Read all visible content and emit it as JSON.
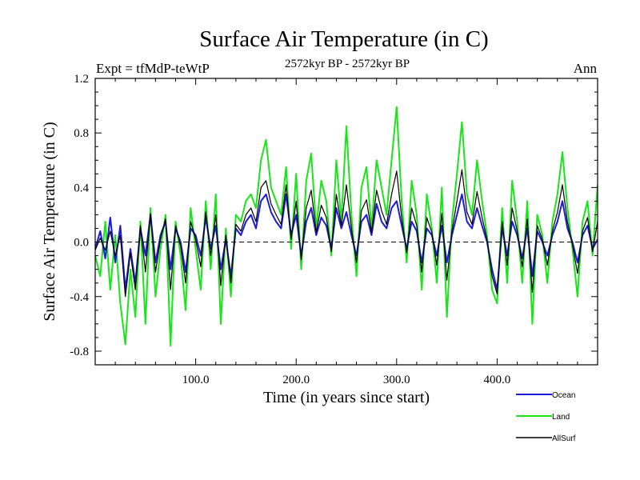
{
  "chart_data": {
    "type": "line",
    "title": "Surface Air Temperature (in C)",
    "subtitle": "2572kyr BP - 2572kyr BP",
    "left_label": "Expt = tfMdP-teWtP",
    "right_label": "Ann",
    "xlabel": "Time (in years since start)",
    "ylabel": "Surface Air Temperature (in C)",
    "xlim": [
      0,
      500
    ],
    "ylim": [
      -0.9,
      1.2
    ],
    "x_ticks": [
      100,
      200,
      300,
      400
    ],
    "x_tick_labels": [
      "100.0",
      "200.0",
      "300.0",
      "400.0"
    ],
    "y_ticks": [
      -0.8,
      -0.4,
      0.0,
      0.4,
      0.8,
      1.2
    ],
    "y_tick_labels": [
      "-0.8",
      "-0.4",
      "0.0",
      "0.4",
      "0.8",
      "1.2"
    ],
    "reference_line": 0.0,
    "legend_position": "bottom-right",
    "x": [
      0,
      5,
      10,
      15,
      20,
      25,
      30,
      35,
      40,
      45,
      50,
      55,
      60,
      65,
      70,
      75,
      80,
      85,
      90,
      95,
      100,
      105,
      110,
      115,
      120,
      125,
      130,
      135,
      140,
      145,
      150,
      155,
      160,
      165,
      170,
      175,
      180,
      185,
      190,
      195,
      200,
      205,
      210,
      215,
      220,
      225,
      230,
      235,
      240,
      245,
      250,
      255,
      260,
      265,
      270,
      275,
      280,
      285,
      290,
      295,
      300,
      305,
      310,
      315,
      320,
      325,
      330,
      335,
      340,
      345,
      350,
      355,
      360,
      365,
      370,
      375,
      380,
      385,
      390,
      395,
      400,
      405,
      410,
      415,
      420,
      425,
      430,
      435,
      440,
      445,
      450,
      455,
      460,
      465,
      470,
      475,
      480,
      485,
      490,
      495,
      500
    ],
    "series": [
      {
        "name": "Ocean",
        "color": "#1c1cd8",
        "values": [
          -0.05,
          0.08,
          -0.12,
          0.18,
          -0.15,
          0.12,
          -0.35,
          -0.05,
          -0.3,
          0.1,
          -0.1,
          0.2,
          -0.15,
          0.05,
          0.15,
          -0.2,
          0.1,
          0.0,
          -0.22,
          0.1,
          0.05,
          -0.1,
          0.18,
          -0.05,
          0.12,
          -0.2,
          0.02,
          -0.25,
          0.1,
          0.05,
          0.15,
          0.2,
          0.1,
          0.3,
          0.35,
          0.22,
          0.15,
          0.1,
          0.35,
          0.05,
          0.2,
          -0.1,
          0.15,
          0.25,
          0.05,
          0.18,
          0.12,
          -0.05,
          0.25,
          0.1,
          0.22,
          0.05,
          -0.1,
          0.15,
          0.2,
          0.05,
          0.28,
          0.15,
          0.1,
          0.25,
          0.3,
          0.12,
          -0.05,
          0.15,
          0.08,
          -0.15,
          0.1,
          0.05,
          -0.1,
          0.12,
          -0.15,
          0.05,
          0.2,
          0.35,
          0.15,
          0.1,
          0.25,
          0.12,
          0.0,
          -0.2,
          -0.35,
          0.1,
          -0.1,
          0.15,
          0.05,
          -0.12,
          0.1,
          -0.25,
          0.08,
          0.0,
          -0.1,
          0.05,
          0.15,
          0.3,
          0.1,
          0.0,
          -0.15,
          0.05,
          0.12,
          -0.05,
          0.02
        ]
      },
      {
        "name": "Land",
        "color": "#19e619",
        "values": [
          -0.1,
          -0.25,
          0.15,
          -0.35,
          0.05,
          -0.45,
          -0.75,
          -0.2,
          -0.55,
          0.15,
          -0.6,
          0.25,
          -0.4,
          -0.05,
          0.2,
          -0.76,
          0.15,
          -0.1,
          -0.5,
          0.25,
          -0.05,
          -0.35,
          0.3,
          -0.2,
          0.35,
          -0.6,
          0.1,
          -0.4,
          0.2,
          0.15,
          0.3,
          0.35,
          0.25,
          0.6,
          0.75,
          0.4,
          0.3,
          0.2,
          0.55,
          -0.05,
          0.5,
          -0.2,
          0.45,
          0.65,
          0.1,
          0.45,
          0.3,
          -0.1,
          0.6,
          0.15,
          0.85,
          0.2,
          -0.25,
          0.4,
          0.55,
          0.1,
          0.6,
          0.4,
          0.2,
          0.6,
          0.99,
          0.3,
          -0.15,
          0.45,
          0.2,
          -0.35,
          0.35,
          0.1,
          -0.3,
          0.4,
          -0.55,
          0.15,
          0.5,
          0.88,
          0.35,
          0.2,
          0.6,
          0.3,
          0.05,
          -0.35,
          -0.45,
          0.25,
          -0.3,
          0.45,
          0.15,
          -0.3,
          0.3,
          -0.6,
          0.2,
          0.05,
          -0.3,
          0.15,
          0.35,
          0.66,
          0.25,
          -0.05,
          -0.4,
          0.15,
          0.3,
          -0.1,
          0.42
        ]
      },
      {
        "name": "AllSurf",
        "color": "#000000",
        "values": [
          -0.06,
          0.03,
          -0.06,
          0.08,
          -0.1,
          0.05,
          -0.4,
          -0.08,
          -0.35,
          0.12,
          -0.22,
          0.21,
          -0.22,
          0.02,
          0.17,
          -0.35,
          0.12,
          -0.03,
          -0.3,
          0.15,
          0.02,
          -0.18,
          0.22,
          -0.1,
          0.2,
          -0.32,
          0.05,
          -0.3,
          0.13,
          0.08,
          0.2,
          0.25,
          0.15,
          0.4,
          0.45,
          0.28,
          0.2,
          0.13,
          0.42,
          0.02,
          0.3,
          -0.13,
          0.25,
          0.38,
          0.07,
          0.27,
          0.18,
          -0.07,
          0.35,
          0.12,
          0.42,
          0.1,
          -0.15,
          0.23,
          0.31,
          0.07,
          0.38,
          0.23,
          0.13,
          0.35,
          0.52,
          0.18,
          -0.08,
          0.25,
          0.12,
          -0.22,
          0.18,
          0.07,
          -0.17,
          0.21,
          -0.28,
          0.08,
          0.3,
          0.53,
          0.22,
          0.13,
          0.37,
          0.18,
          0.02,
          -0.25,
          -0.38,
          0.15,
          -0.17,
          0.25,
          0.08,
          -0.18,
          0.17,
          -0.37,
          0.12,
          0.02,
          -0.17,
          0.08,
          0.22,
          0.42,
          0.15,
          -0.02,
          -0.23,
          0.08,
          0.18,
          -0.07,
          0.15
        ]
      }
    ]
  }
}
